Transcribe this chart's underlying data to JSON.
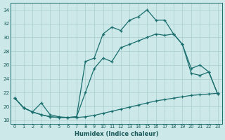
{
  "xlabel": "Humidex (Indice chaleur)",
  "bg_color": "#cce8e8",
  "grid_color": "#aacece",
  "line_color": "#1a6e6e",
  "xlim": [
    -0.5,
    23.5
  ],
  "ylim": [
    17.5,
    35.0
  ],
  "yticks": [
    18,
    20,
    22,
    24,
    26,
    28,
    30,
    32,
    34
  ],
  "xticks": [
    0,
    1,
    2,
    3,
    4,
    5,
    6,
    7,
    8,
    9,
    10,
    11,
    12,
    13,
    14,
    15,
    16,
    17,
    18,
    19,
    20,
    21,
    22,
    23
  ],
  "line1_x": [
    0,
    1,
    2,
    3,
    4,
    5,
    6,
    7,
    8,
    9,
    10,
    11,
    12,
    13,
    14,
    15,
    16,
    17,
    18,
    19,
    20,
    21,
    22,
    23
  ],
  "line1_y": [
    21.2,
    19.8,
    19.2,
    18.8,
    18.5,
    18.4,
    18.4,
    18.4,
    18.5,
    18.7,
    19.0,
    19.3,
    19.6,
    19.9,
    20.2,
    20.5,
    20.8,
    21.0,
    21.2,
    21.4,
    21.6,
    21.7,
    21.8,
    21.9
  ],
  "line2_x": [
    0,
    1,
    2,
    3,
    4,
    5,
    6,
    7,
    8,
    9,
    10,
    11,
    12,
    13,
    14,
    15,
    16,
    17,
    18,
    19,
    20,
    21,
    22,
    23
  ],
  "line2_y": [
    21.2,
    19.8,
    19.2,
    20.5,
    18.8,
    18.5,
    18.4,
    18.5,
    22.0,
    25.5,
    27.0,
    26.5,
    28.5,
    29.0,
    29.5,
    30.0,
    30.5,
    30.3,
    30.5,
    29.0,
    24.8,
    24.5,
    25.0,
    21.8
  ],
  "line3_x": [
    0,
    1,
    2,
    3,
    4,
    5,
    6,
    7,
    8,
    9,
    10,
    11,
    12,
    13,
    14,
    15,
    16,
    17,
    18,
    19,
    20,
    21,
    22,
    23
  ],
  "line3_y": [
    21.2,
    19.8,
    19.2,
    18.8,
    18.5,
    18.4,
    18.4,
    18.5,
    26.5,
    27.0,
    30.5,
    31.5,
    31.0,
    32.5,
    33.0,
    34.0,
    32.5,
    32.5,
    30.5,
    29.0,
    25.5,
    26.0,
    25.0,
    21.8
  ]
}
